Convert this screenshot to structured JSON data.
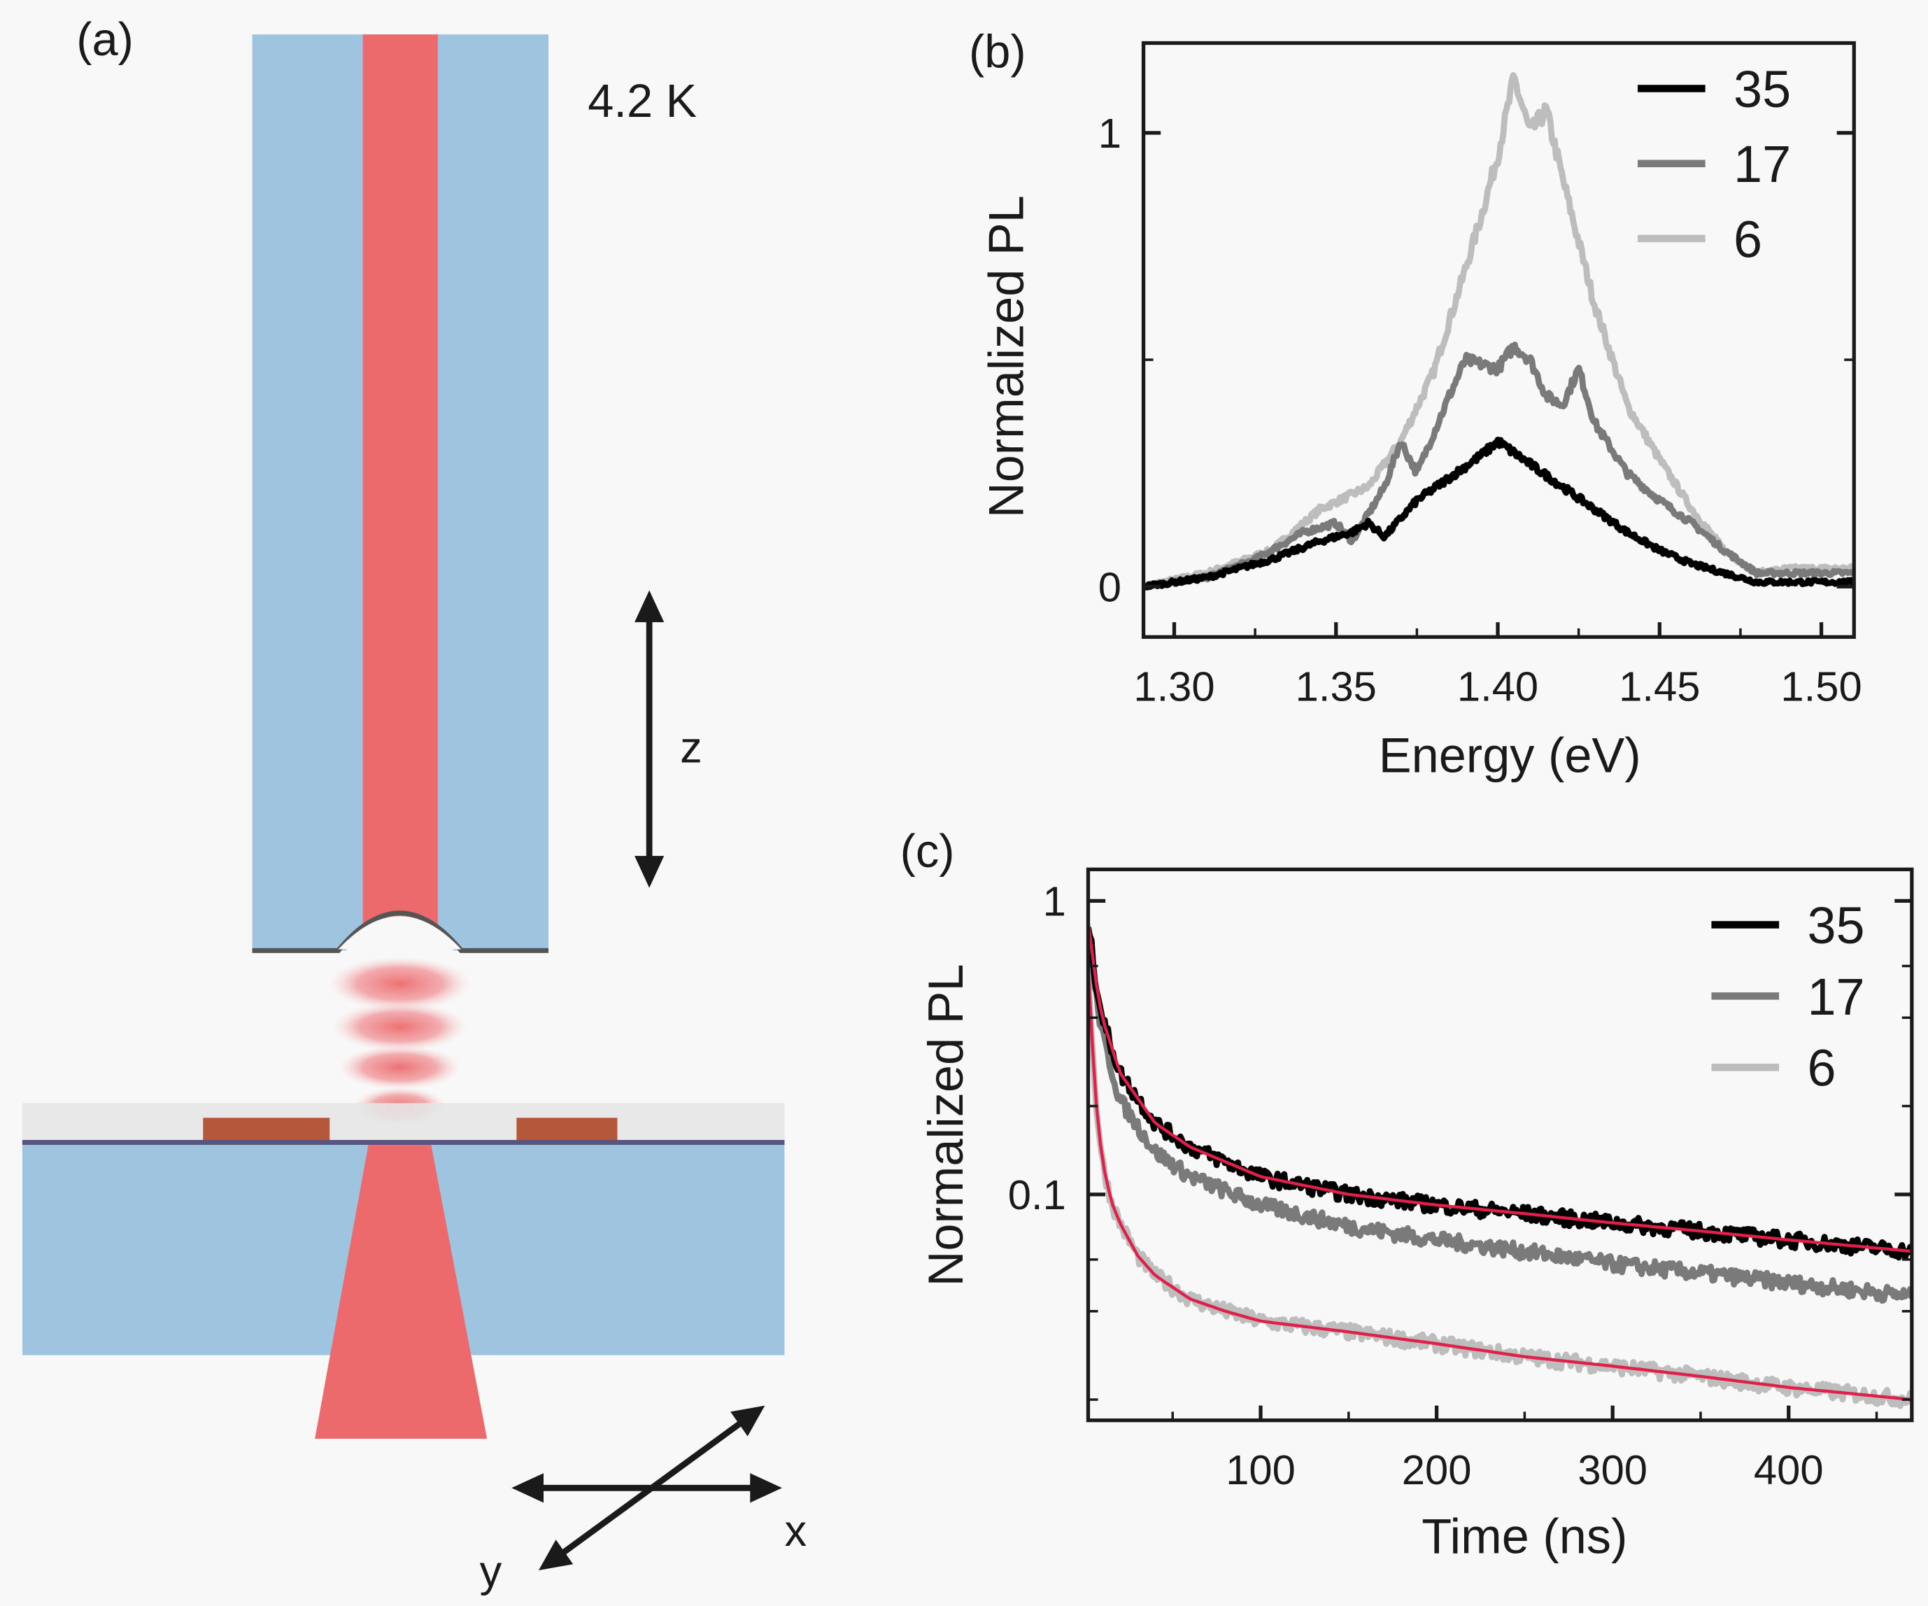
{
  "panel_a": {
    "label": "(a)",
    "temperature": "4.2 K",
    "axis_z": "z",
    "axis_x": "x",
    "axis_y": "y",
    "colors": {
      "fiber_cladding": "#9fc4e0",
      "beam": "#ec6a6c",
      "cap_layer": "#e6e6e6",
      "pads": "#b4573a",
      "substrate": "#9fc4e0"
    }
  },
  "chart_data": [
    {
      "panel": "(b)",
      "type": "line",
      "xlabel": "Energy (eV)",
      "ylabel": "Normalized PL",
      "xlim": [
        1.2905,
        1.5101
      ],
      "ylim": [
        -0.111,
        1.198
      ],
      "xticks": [
        "1.30",
        "1.35",
        "1.40",
        "1.45",
        "1.50"
      ],
      "xtick_values": [
        1.3,
        1.35,
        1.4,
        1.45,
        1.5
      ],
      "yticks": [
        "0",
        "1"
      ],
      "ytick_values": [
        0,
        1
      ],
      "grid": false,
      "legend_position": "top-right",
      "series": [
        {
          "name": "35",
          "color": "#000000",
          "x": [
            1.29,
            1.31,
            1.33,
            1.345,
            1.355,
            1.36,
            1.365,
            1.375,
            1.385,
            1.395,
            1.4,
            1.41,
            1.42,
            1.43,
            1.44,
            1.45,
            1.46,
            1.47,
            1.48,
            1.49,
            1.51
          ],
          "y": [
            0.0,
            0.02,
            0.06,
            0.1,
            0.12,
            0.14,
            0.11,
            0.19,
            0.24,
            0.29,
            0.32,
            0.27,
            0.22,
            0.17,
            0.12,
            0.08,
            0.05,
            0.03,
            0.01,
            0.01,
            0.01
          ]
        },
        {
          "name": "17",
          "color": "#7a7a7a",
          "x": [
            1.29,
            1.31,
            1.325,
            1.34,
            1.35,
            1.355,
            1.365,
            1.37,
            1.375,
            1.385,
            1.39,
            1.4,
            1.405,
            1.41,
            1.415,
            1.42,
            1.425,
            1.43,
            1.44,
            1.45,
            1.46,
            1.47,
            1.48,
            1.49,
            1.51
          ],
          "y": [
            0.0,
            0.02,
            0.06,
            0.12,
            0.14,
            0.1,
            0.22,
            0.32,
            0.25,
            0.42,
            0.5,
            0.48,
            0.53,
            0.5,
            0.42,
            0.4,
            0.48,
            0.36,
            0.25,
            0.19,
            0.14,
            0.08,
            0.03,
            0.03,
            0.03
          ]
        },
        {
          "name": "6",
          "color": "#bdbdbd",
          "x": [
            1.29,
            1.31,
            1.33,
            1.345,
            1.36,
            1.37,
            1.38,
            1.39,
            1.395,
            1.4,
            1.405,
            1.41,
            1.415,
            1.42,
            1.43,
            1.44,
            1.45,
            1.46,
            1.47,
            1.48,
            1.49,
            1.51
          ],
          "y": [
            0.0,
            0.03,
            0.08,
            0.17,
            0.22,
            0.32,
            0.47,
            0.7,
            0.82,
            0.95,
            1.12,
            1.0,
            1.05,
            0.9,
            0.62,
            0.4,
            0.28,
            0.17,
            0.08,
            0.03,
            0.04,
            0.04
          ]
        }
      ]
    },
    {
      "panel": "(c)",
      "type": "line",
      "xlabel": "Time (ns)",
      "ylabel": "Normalized PL",
      "xlim": [
        2,
        470
      ],
      "ylim": [
        0.017,
        1.28
      ],
      "yscale": "log",
      "xticks": [
        "100",
        "200",
        "300",
        "400"
      ],
      "xtick_values": [
        100,
        200,
        300,
        400
      ],
      "yticks": [
        "1",
        "0.1"
      ],
      "ytick_values": [
        1,
        0.1
      ],
      "grid": false,
      "legend_position": "top-right",
      "fit_color": "#e0204a",
      "series": [
        {
          "name": "35",
          "color": "#000000",
          "fit": true,
          "x": [
            2,
            6,
            10,
            20,
            40,
            60,
            100,
            150,
            200,
            250,
            300,
            350,
            400,
            470
          ],
          "y": [
            0.85,
            0.55,
            0.4,
            0.26,
            0.175,
            0.145,
            0.115,
            0.1,
            0.092,
            0.086,
            0.08,
            0.075,
            0.07,
            0.064
          ]
        },
        {
          "name": "17",
          "color": "#7a7a7a",
          "fit": false,
          "x": [
            2,
            6,
            10,
            20,
            40,
            60,
            100,
            150,
            200,
            250,
            300,
            350,
            400,
            470
          ],
          "y": [
            0.8,
            0.5,
            0.35,
            0.21,
            0.14,
            0.115,
            0.092,
            0.078,
            0.07,
            0.064,
            0.058,
            0.054,
            0.05,
            0.045
          ]
        },
        {
          "name": "6",
          "color": "#bdbdbd",
          "fit": true,
          "x": [
            2,
            4,
            6,
            10,
            15,
            20,
            30,
            40,
            60,
            80,
            100,
            150,
            200,
            250,
            300,
            350,
            400,
            470
          ],
          "y": [
            0.6,
            0.35,
            0.22,
            0.13,
            0.095,
            0.08,
            0.062,
            0.053,
            0.044,
            0.04,
            0.037,
            0.034,
            0.031,
            0.028,
            0.026,
            0.024,
            0.022,
            0.02
          ]
        }
      ]
    }
  ]
}
